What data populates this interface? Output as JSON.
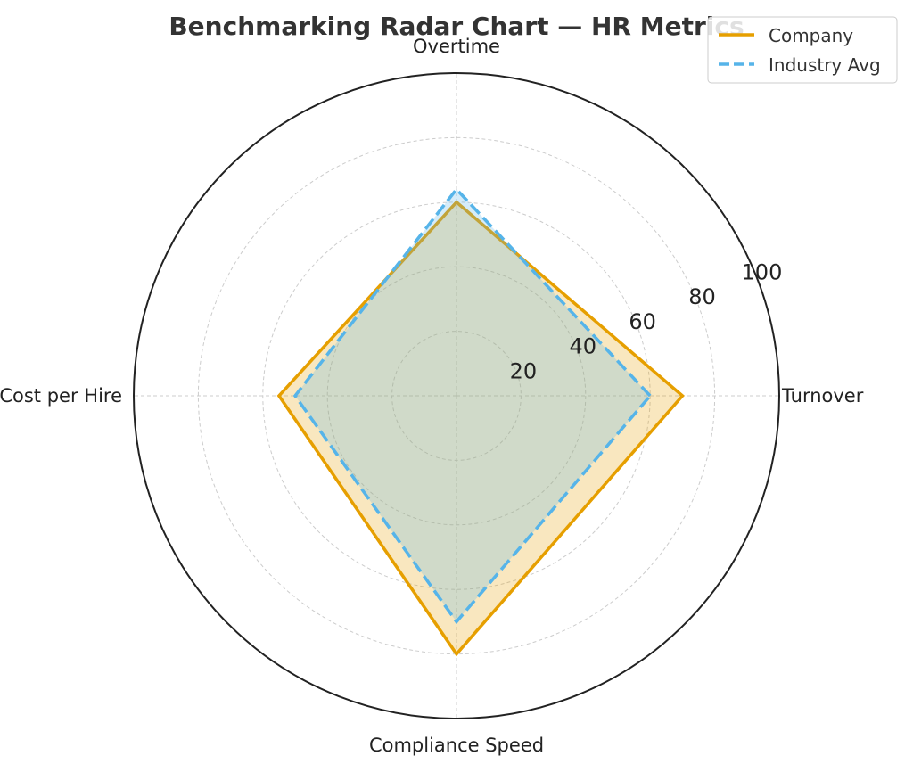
{
  "chart_data": {
    "type": "radar",
    "title": "Benchmarking Radar Chart — HR Metrics",
    "categories": [
      "Turnover",
      "Overtime",
      "Cost per Hire",
      "Compliance Speed"
    ],
    "rlim": [
      0,
      100
    ],
    "r_ticks": [
      20,
      40,
      60,
      80,
      100
    ],
    "grid": true,
    "legend_position": "top-right",
    "series": [
      {
        "name": "Company",
        "values": [
          70,
          60,
          55,
          80
        ],
        "color": "#e69f00",
        "line_style": "solid",
        "fill_opacity": 0.25
      },
      {
        "name": "Industry Avg",
        "values": [
          60,
          64,
          50,
          70
        ],
        "color": "#56b4e9",
        "line_style": "dashed",
        "fill_opacity": 0.25
      }
    ]
  }
}
